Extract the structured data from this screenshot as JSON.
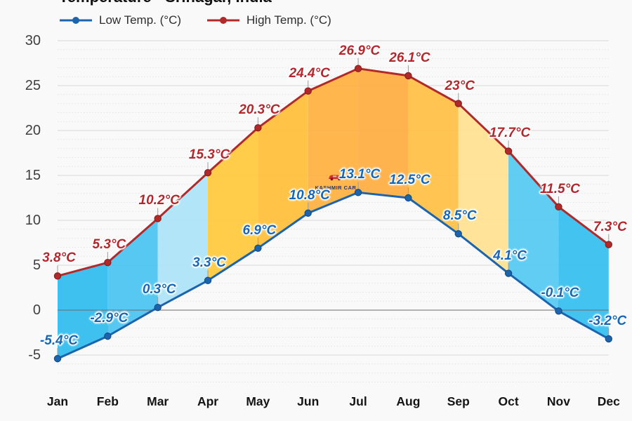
{
  "title": "Temperature - Srinagar, India",
  "legend": [
    {
      "label": "Low Temp. (°C)",
      "color": "#1c64ad"
    },
    {
      "label": "High Temp. (°C)",
      "color": "#b2292a"
    }
  ],
  "watermark": {
    "text": "KASHMIR CAR"
  },
  "chart_data": {
    "type": "line",
    "title": "Temperature - Srinagar, India",
    "categories": [
      "Jan",
      "Feb",
      "Mar",
      "Apr",
      "May",
      "Jun",
      "Jul",
      "Aug",
      "Sep",
      "Oct",
      "Nov",
      "Dec"
    ],
    "series": [
      {
        "name": "Low Temp. (°C)",
        "color": "#1c64ad",
        "marker_stroke": "#124e8c",
        "label_color": "#1667b6",
        "values": [
          -5.4,
          -2.9,
          0.3,
          3.3,
          6.9,
          10.8,
          13.1,
          12.5,
          8.5,
          4.1,
          -0.1,
          -3.2
        ],
        "labels": [
          "-5.4°C",
          "-2.9°C",
          "0.3°C",
          "3.3°C",
          "6.9°C",
          "10.8°C",
          "13.1°C",
          "12.5°C",
          "8.5°C",
          "4.1°C",
          "-0.1°C",
          "-3.2°C"
        ]
      },
      {
        "name": "High Temp. (°C)",
        "color": "#b2292a",
        "marker_stroke": "#8c1d1c",
        "label_color": "#b3282d",
        "values": [
          3.8,
          5.3,
          10.2,
          15.3,
          20.3,
          24.4,
          26.9,
          26.1,
          23,
          17.7,
          11.5,
          7.3
        ],
        "labels": [
          "3.8°C",
          "5.3°C",
          "10.2°C",
          "15.3°C",
          "20.3°C",
          "24.4°C",
          "26.9°C",
          "26.1°C",
          "23°C",
          "17.7°C",
          "11.5°C",
          "7.3°C"
        ]
      }
    ],
    "band_fills": [
      "#2fbcee",
      "#49c4f0",
      "#ade3f8",
      "#ffc93b",
      "#ffbe3a",
      "#ffb03f",
      "#ffad41",
      "#ffbf44",
      "#ffe190",
      "#55c9f2",
      "#35bfef"
    ],
    "y_tick_values": [
      30,
      25,
      20,
      15,
      10,
      5,
      0,
      -5
    ],
    "y_tick_labels": [
      "30",
      "25",
      "20",
      "15",
      "10",
      "5",
      "0",
      "-5"
    ],
    "ylim": [
      -8,
      30.5
    ],
    "xlabel": "",
    "ylabel": "",
    "grid": "major solid every 5, minor dotted every 1",
    "legend_position": "top-left"
  }
}
